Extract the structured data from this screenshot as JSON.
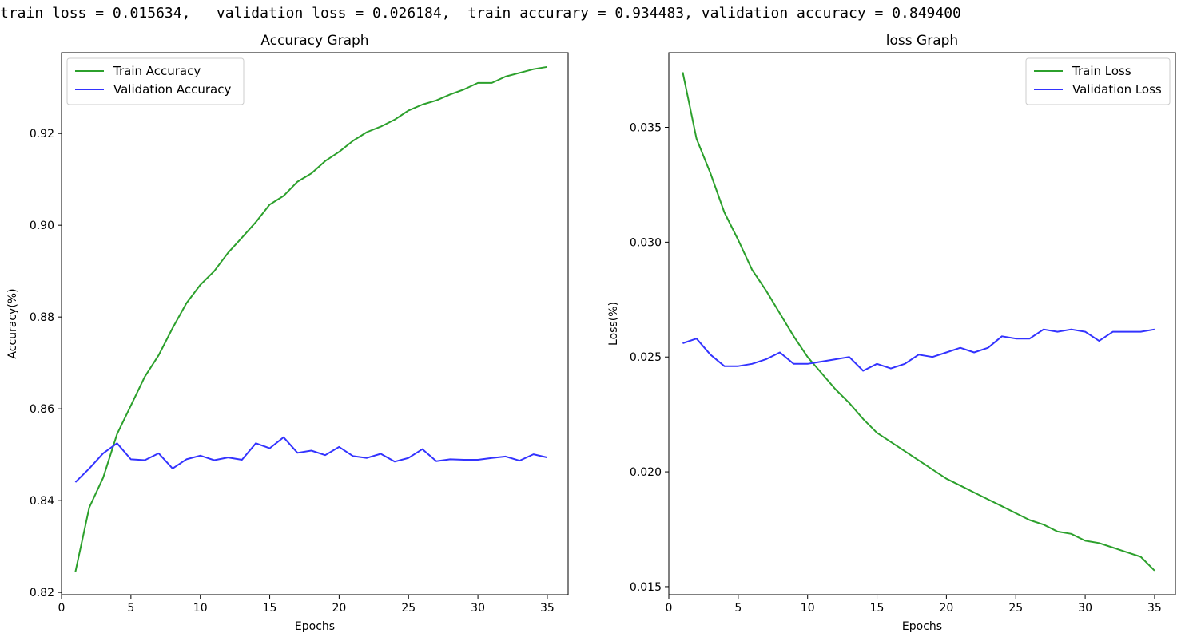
{
  "summary": "train loss = 0.015634,   validation loss = 0.026184,  train accurary = 0.934483, validation accuracy = 0.849400",
  "colors": {
    "train": "#2ca02c",
    "validation": "#3333ff"
  },
  "chart_data": [
    {
      "type": "line",
      "title": "Accuracy Graph",
      "xlabel": "Epochs",
      "ylabel": "Accuracy(%)",
      "xlim": [
        0,
        36.5
      ],
      "ylim": [
        0.8195,
        0.9376
      ],
      "xticks": [
        0,
        5,
        10,
        15,
        20,
        25,
        30,
        35
      ],
      "yticks": [
        0.82,
        0.84,
        0.86,
        0.88,
        0.9,
        0.92
      ],
      "ytick_labels": [
        "0.82",
        "0.84",
        "0.86",
        "0.88",
        "0.90",
        "0.92"
      ],
      "legend_position": "top-left",
      "grid": false,
      "x": [
        1,
        2,
        3,
        4,
        5,
        6,
        7,
        8,
        9,
        10,
        11,
        12,
        13,
        14,
        15,
        16,
        17,
        18,
        19,
        20,
        21,
        22,
        23,
        24,
        25,
        26,
        27,
        28,
        29,
        30,
        31,
        32,
        33,
        34,
        35
      ],
      "series": [
        {
          "name": "Train Accuracy",
          "color": "#2ca02c",
          "values": [
            0.8245,
            0.8385,
            0.845,
            0.8545,
            0.8607,
            0.867,
            0.8717,
            0.8776,
            0.883,
            0.887,
            0.89,
            0.894,
            0.8973,
            0.9007,
            0.9045,
            0.9064,
            0.9095,
            0.9113,
            0.914,
            0.916,
            0.9184,
            0.9203,
            0.9215,
            0.923,
            0.925,
            0.9263,
            0.9272,
            0.9285,
            0.9296,
            0.931,
            0.931,
            0.9324,
            0.9332,
            0.934,
            0.9345
          ]
        },
        {
          "name": "Validation Accuracy",
          "color": "#3333ff",
          "values": [
            0.844,
            0.847,
            0.8503,
            0.8525,
            0.849,
            0.8488,
            0.8503,
            0.847,
            0.849,
            0.8498,
            0.8488,
            0.8494,
            0.8489,
            0.8525,
            0.8514,
            0.8538,
            0.8504,
            0.8509,
            0.8499,
            0.8517,
            0.8497,
            0.8493,
            0.8502,
            0.8485,
            0.8493,
            0.8512,
            0.8486,
            0.849,
            0.8489,
            0.8489,
            0.8493,
            0.8496,
            0.8487,
            0.8501,
            0.8494
          ]
        }
      ]
    },
    {
      "type": "line",
      "title": "loss Graph",
      "xlabel": "Epochs",
      "ylabel": "Loss(%)",
      "xlim": [
        0,
        36.5
      ],
      "ylim": [
        0.01465,
        0.03825
      ],
      "xticks": [
        0,
        5,
        10,
        15,
        20,
        25,
        30,
        35
      ],
      "yticks": [
        0.015,
        0.02,
        0.025,
        0.03,
        0.035
      ],
      "ytick_labels": [
        "0.015",
        "0.020",
        "0.025",
        "0.030",
        "0.035"
      ],
      "legend_position": "top-right",
      "grid": false,
      "x": [
        1,
        2,
        3,
        4,
        5,
        6,
        7,
        8,
        9,
        10,
        11,
        12,
        13,
        14,
        15,
        16,
        17,
        18,
        19,
        20,
        21,
        22,
        23,
        24,
        25,
        26,
        27,
        28,
        29,
        30,
        31,
        32,
        33,
        34,
        35
      ],
      "series": [
        {
          "name": "Train Loss",
          "color": "#2ca02c",
          "values": [
            0.0374,
            0.0345,
            0.033,
            0.0313,
            0.0301,
            0.0288,
            0.0279,
            0.0269,
            0.0259,
            0.025,
            0.0243,
            0.0236,
            0.023,
            0.0223,
            0.0217,
            0.0213,
            0.0209,
            0.0205,
            0.0201,
            0.0197,
            0.0194,
            0.0191,
            0.0188,
            0.0185,
            0.0182,
            0.0179,
            0.0177,
            0.0174,
            0.0173,
            0.017,
            0.0169,
            0.0167,
            0.0165,
            0.0163,
            0.0157
          ]
        },
        {
          "name": "Validation Loss",
          "color": "#3333ff",
          "values": [
            0.0256,
            0.0258,
            0.0251,
            0.0246,
            0.0246,
            0.0247,
            0.0249,
            0.0252,
            0.0247,
            0.0247,
            0.0248,
            0.0249,
            0.025,
            0.0244,
            0.0247,
            0.0245,
            0.0247,
            0.0251,
            0.025,
            0.0252,
            0.0254,
            0.0252,
            0.0254,
            0.0259,
            0.0258,
            0.0258,
            0.0262,
            0.0261,
            0.0262,
            0.0261,
            0.0257,
            0.0261,
            0.0261,
            0.0261,
            0.0262
          ]
        }
      ]
    }
  ]
}
